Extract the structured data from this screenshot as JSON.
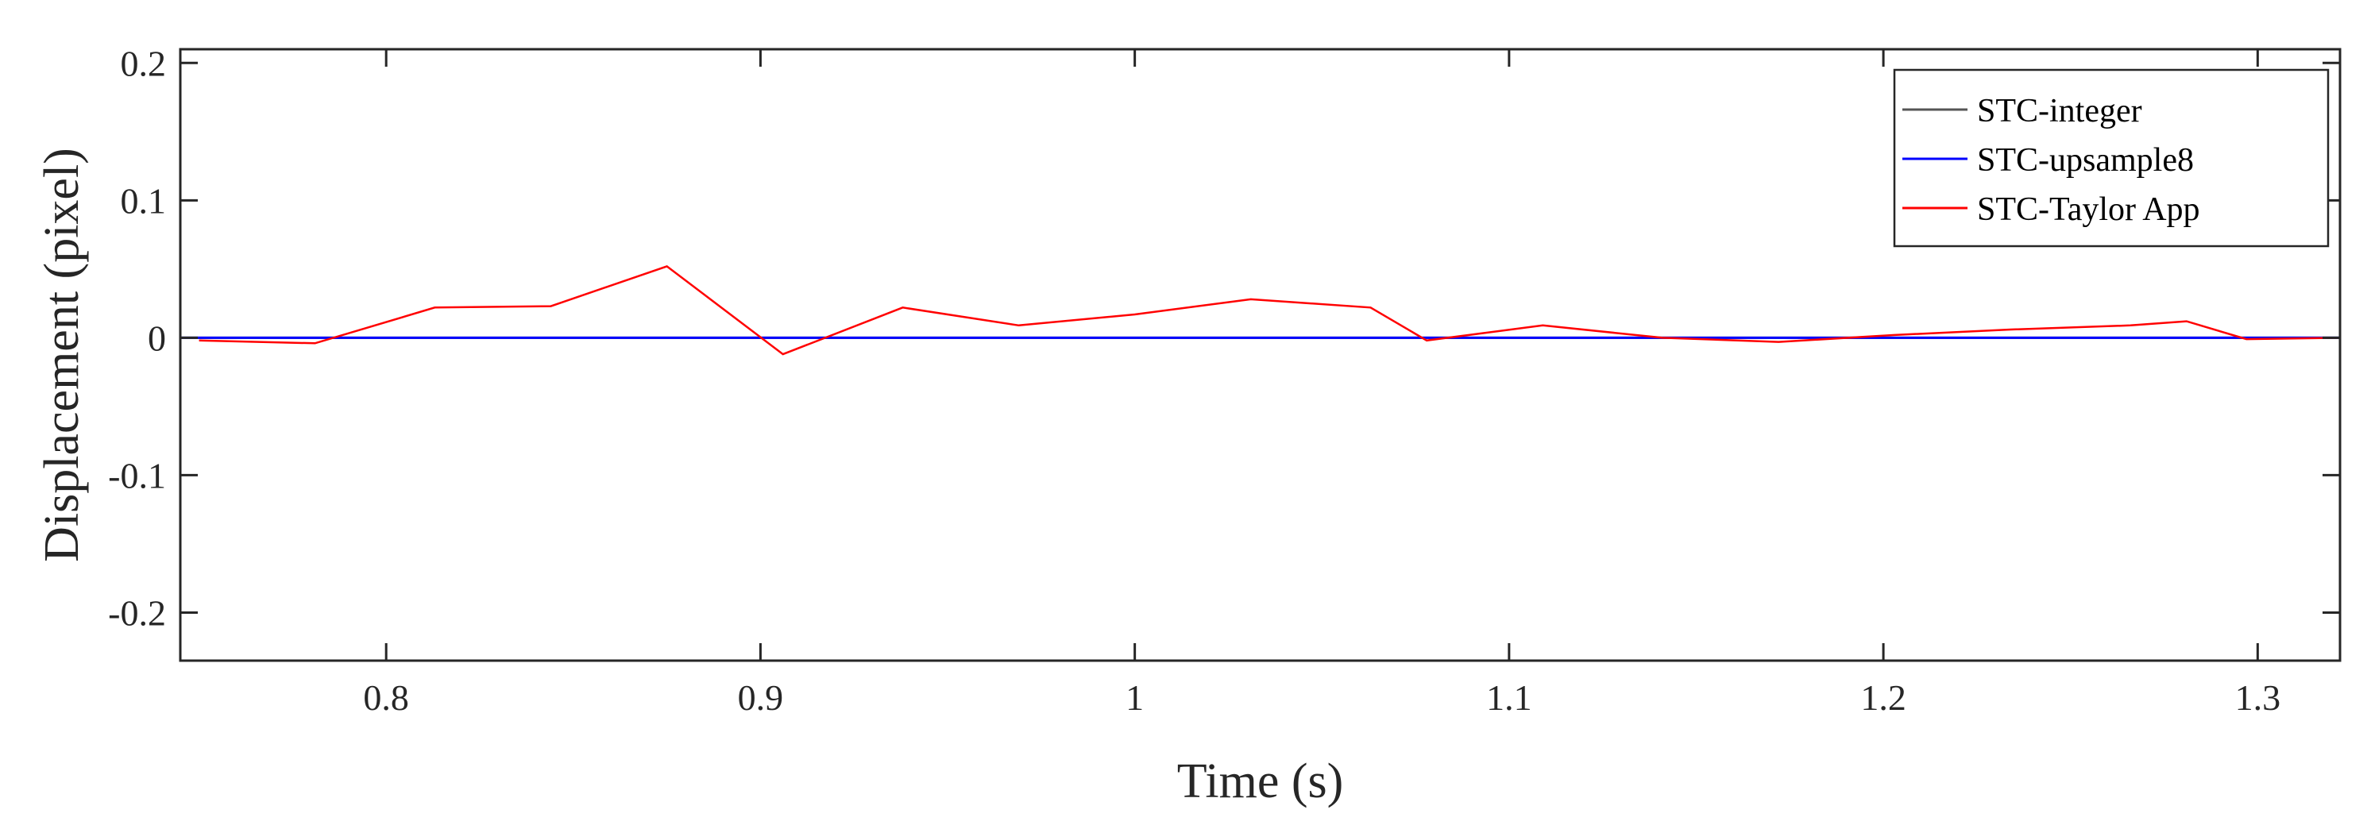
{
  "chart_data": {
    "type": "line",
    "xlabel": "Time (s)",
    "ylabel": "Displacement (pixel)",
    "xlim": [
      0.745,
      1.322
    ],
    "ylim": [
      -0.235,
      0.21
    ],
    "x_ticks": [
      0.8,
      0.9,
      1.0,
      1.1,
      1.2,
      1.3
    ],
    "x_tick_labels": [
      "0.8",
      "0.9",
      "1",
      "1.1",
      "1.2",
      "1.3"
    ],
    "y_ticks": [
      0.2,
      0.1,
      0,
      -0.1,
      -0.2
    ],
    "y_tick_labels": [
      "0.2",
      "0.1",
      "0",
      "-0.1",
      "-0.2"
    ],
    "grid": false,
    "legend_position": "top-right",
    "series": [
      {
        "name": "STC-integer",
        "color": "#555555",
        "x": [
          0.745,
          1.322
        ],
        "y": [
          0,
          0
        ]
      },
      {
        "name": "STC-upsample8",
        "color": "#0000ff",
        "x": [
          0.745,
          1.322
        ],
        "y": [
          0,
          0
        ]
      },
      {
        "name": "STC-Taylor App",
        "color": "#ff0000",
        "x": [
          0.75,
          0.781,
          0.813,
          0.844,
          0.875,
          0.906,
          0.938,
          0.969,
          1.0,
          1.031,
          1.063,
          1.078,
          1.109,
          1.141,
          1.172,
          1.203,
          1.234,
          1.266,
          1.281,
          1.297,
          1.322
        ],
        "y": [
          -0.002,
          -0.004,
          0.022,
          0.023,
          0.052,
          -0.012,
          0.022,
          0.009,
          0.017,
          0.028,
          0.022,
          -0.002,
          0.009,
          0.0,
          -0.003,
          0.002,
          0.006,
          0.009,
          0.012,
          -0.001,
          0.0
        ]
      }
    ]
  }
}
